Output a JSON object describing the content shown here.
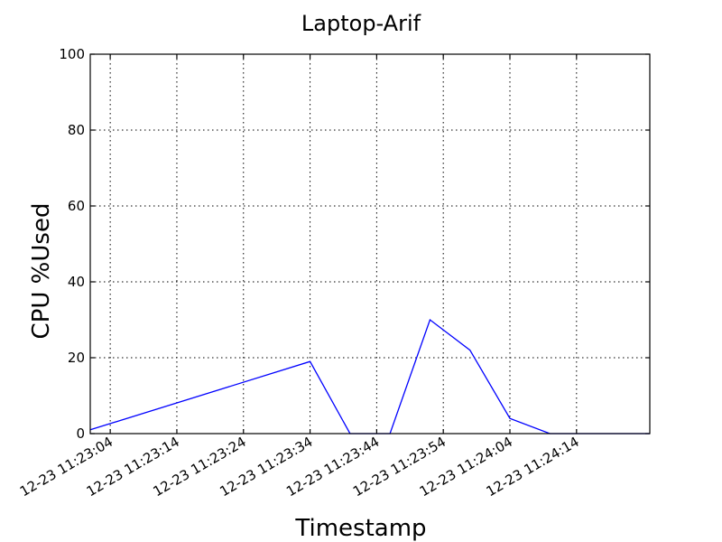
{
  "chart_data": {
    "type": "line",
    "title": "Laptop-Arif",
    "xlabel": "Timestamp",
    "ylabel": "CPU %Used",
    "ylim": [
      0,
      100
    ],
    "yticks": [
      0,
      20,
      40,
      60,
      80,
      100
    ],
    "xlim": [
      "12-23 11:23:01",
      "12-23 11:24:25"
    ],
    "xticks": [
      {
        "t": "12-23 11:23:04",
        "label": "12-23 11:23:04"
      },
      {
        "t": "12-23 11:23:14",
        "label": "12-23 11:23:14"
      },
      {
        "t": "12-23 11:23:24",
        "label": "12-23 11:23:24"
      },
      {
        "t": "12-23 11:23:34",
        "label": "12-23 11:23:34"
      },
      {
        "t": "12-23 11:23:44",
        "label": "12-23 11:23:44"
      },
      {
        "t": "12-23 11:23:54",
        "label": "12-23 11:23:54"
      },
      {
        "t": "12-23 11:24:04",
        "label": "12-23 11:24:04"
      },
      {
        "t": "12-23 11:24:14",
        "label": "12-23 11:24:14"
      }
    ],
    "grid": true,
    "series": [
      {
        "color": "#0000ff",
        "x": [
          "12-23 11:23:01",
          "12-23 11:23:34",
          "12-23 11:23:40",
          "12-23 11:23:46",
          "12-23 11:23:52",
          "12-23 11:23:58",
          "12-23 11:24:04",
          "12-23 11:24:10",
          "12-23 11:24:25"
        ],
        "y": [
          1,
          19,
          0,
          0,
          30,
          22,
          4,
          0,
          0
        ]
      }
    ]
  }
}
